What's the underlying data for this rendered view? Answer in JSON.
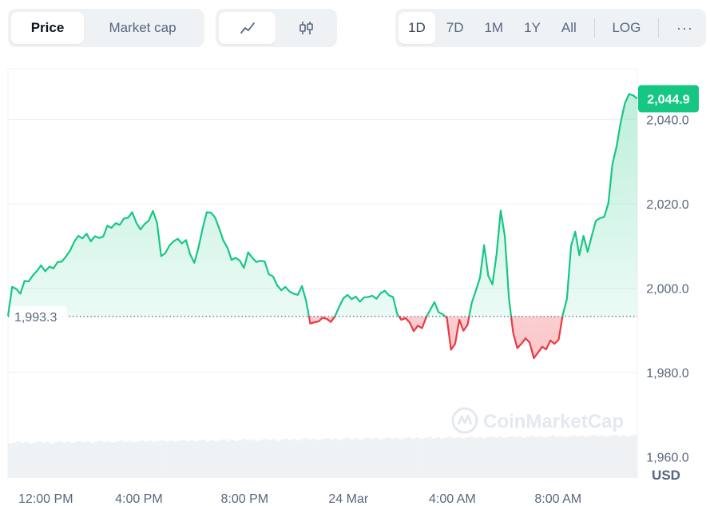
{
  "toolbar": {
    "metric_tabs": [
      {
        "label": "Price",
        "active": true
      },
      {
        "label": "Market cap",
        "active": false
      }
    ],
    "chart_type_icons": [
      "line-chart-icon",
      "candlestick-icon"
    ],
    "ranges": [
      {
        "label": "1D",
        "active": true
      },
      {
        "label": "7D",
        "active": false
      },
      {
        "label": "1M",
        "active": false
      },
      {
        "label": "1Y",
        "active": false
      },
      {
        "label": "All",
        "active": false
      }
    ],
    "log_label": "LOG",
    "more_label": "···"
  },
  "chart_data": {
    "type": "line",
    "currency_label": "USD",
    "reference_price": 1993.3,
    "reference_label": "1,993.3",
    "current_price": 2044.9,
    "current_label": "2,044.9",
    "ylim": [
      1955,
      2052
    ],
    "y_ticks": [
      1960,
      1980,
      2000,
      2020,
      2040
    ],
    "y_tick_labels": [
      "1,960.0",
      "1,980.0",
      "2,000.0",
      "2,020.0",
      "2,040.0"
    ],
    "x_ticks": [
      {
        "pos": 0.06,
        "label": "12:00 PM"
      },
      {
        "pos": 0.208,
        "label": "4:00 PM"
      },
      {
        "pos": 0.376,
        "label": "8:00 PM"
      },
      {
        "pos": 0.541,
        "label": "24 Mar"
      },
      {
        "pos": 0.706,
        "label": "4:00 AM"
      },
      {
        "pos": 0.874,
        "label": "8:00 AM"
      }
    ],
    "up_color": "#16c784",
    "down_color": "#ea3943",
    "watermark": "CoinMarketCap",
    "values": [
      1993.4,
      2000.3,
      1999.8,
      1998.7,
      2001.7,
      2001.6,
      2003.0,
      2004.1,
      2005.4,
      2004.0,
      2005.1,
      2004.7,
      2006.2,
      2006.3,
      2007.5,
      2008.9,
      2011.0,
      2012.4,
      2011.8,
      2012.9,
      2011.1,
      2012.3,
      2011.9,
      2012.2,
      2014.8,
      2014.3,
      2015.4,
      2015.0,
      2016.5,
      2016.7,
      2018.0,
      2015.5,
      2013.9,
      2015.2,
      2016.0,
      2018.3,
      2015.5,
      2007.6,
      2008.3,
      2010.1,
      2011.1,
      2011.7,
      2010.6,
      2011.4,
      2008.0,
      2006.0,
      2009.6,
      2014.1,
      2018.0,
      2017.9,
      2016.8,
      2014.2,
      2011.3,
      2009.6,
      2006.7,
      2007.2,
      2006.5,
      2004.8,
      2008.5,
      2007.2,
      2006.2,
      2006.5,
      2006.3,
      2003.3,
      2002.8,
      2000.7,
      1999.5,
      2000.3,
      1999.2,
      1998.7,
      1998.4,
      2000.5,
      1997.0,
      1991.6,
      1991.9,
      1992.1,
      1993.0,
      1992.7,
      1992.0,
      1993.4,
      1995.6,
      1997.6,
      1998.4,
      1997.4,
      1998.0,
      1996.8,
      1997.8,
      1997.9,
      1998.2,
      1997.5,
      1998.8,
      1999.4,
      1998.3,
      1997.9,
      1993.9,
      1992.5,
      1992.9,
      1991.9,
      1989.8,
      1991.1,
      1990.5,
      1993.1,
      1994.9,
      1996.7,
      1994.3,
      1993.8,
      1993.0,
      1985.4,
      1986.8,
      1992.5,
      1989.9,
      1991.3,
      1996.5,
      1999.4,
      2002.5,
      2010.2,
      2002.9,
      2000.9,
      2008.0,
      2018.4,
      2012.3,
      1997.5,
      1989.5,
      1985.8,
      1986.8,
      1988.1,
      1987.1,
      1983.4,
      1984.7,
      1986.1,
      1985.5,
      1987.6,
      1986.8,
      1987.8,
      1993.7,
      1997.5,
      2010.0,
      2013.4,
      2007.8,
      2012.4,
      2008.6,
      2012.4,
      2016.0,
      2016.6,
      2016.9,
      2020.1,
      2029.5,
      2033.6,
      2039.4,
      2043.8,
      2046.0,
      2045.7,
      2044.9
    ]
  }
}
